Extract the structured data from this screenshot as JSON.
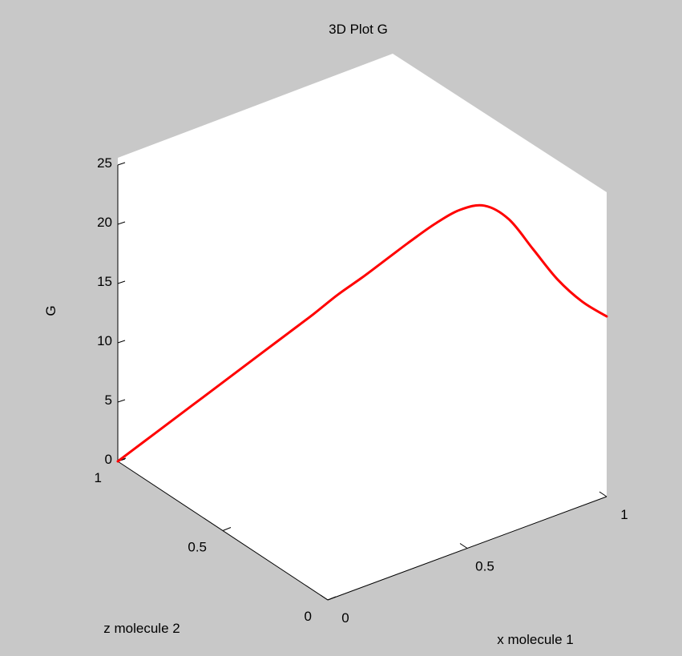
{
  "chart_data": {
    "type": "line",
    "projection": "3d",
    "title": "3D Plot G",
    "xlabel": "x molecule 1",
    "ylabel": "z molecule 2",
    "zlabel": "G",
    "xlim": [
      0,
      1
    ],
    "ylim": [
      0,
      1
    ],
    "zlim": [
      0,
      25
    ],
    "x_ticks": [
      "0",
      "0.5",
      "1"
    ],
    "y_ticks": [
      "0",
      "0.5",
      "1"
    ],
    "z_ticks": [
      "0",
      "5",
      "10",
      "15",
      "20",
      "25"
    ],
    "grid": false,
    "series": [
      {
        "color": "#ff0000",
        "x": [
          0.0,
          0.05,
          0.1,
          0.15,
          0.2,
          0.25,
          0.3,
          0.35,
          0.4,
          0.45,
          0.5,
          0.55,
          0.6,
          0.65,
          0.7,
          0.75,
          0.8,
          0.85,
          0.9,
          0.95,
          1.0
        ],
        "y": [
          1.0,
          0.95,
          0.9,
          0.85,
          0.8,
          0.75,
          0.7,
          0.65,
          0.6,
          0.55,
          0.5,
          0.45,
          0.4,
          0.35,
          0.3,
          0.25,
          0.2,
          0.15,
          0.1,
          0.05,
          0.0
        ],
        "z": [
          0.0,
          1.7,
          3.4,
          5.1,
          6.8,
          8.5,
          10.2,
          11.9,
          13.6,
          15.4,
          17.0,
          18.7,
          20.4,
          22.0,
          23.3,
          23.8,
          22.8,
          20.4,
          18.0,
          16.3,
          15.2
        ]
      }
    ]
  }
}
